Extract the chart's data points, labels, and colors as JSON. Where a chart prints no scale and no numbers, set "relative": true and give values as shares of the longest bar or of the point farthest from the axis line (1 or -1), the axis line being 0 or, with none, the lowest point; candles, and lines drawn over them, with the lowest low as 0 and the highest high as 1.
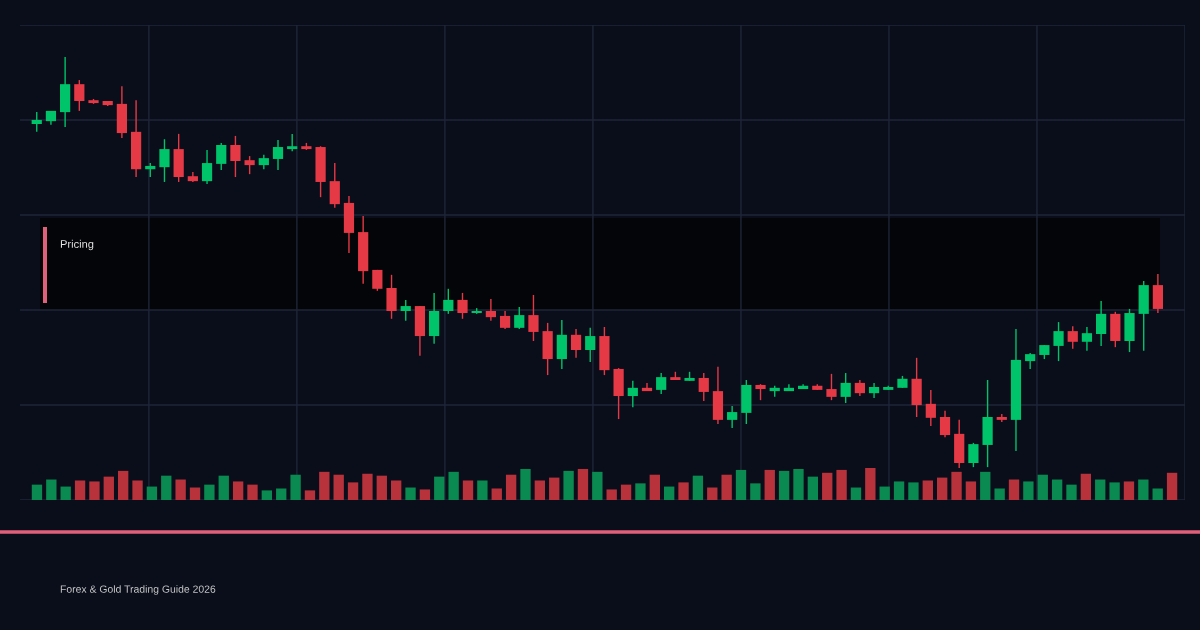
{
  "chart_data": [
    {
      "type": "candlestick",
      "relative": true,
      "grid": true,
      "categories": [
        null,
        null,
        null,
        null,
        null,
        null,
        null,
        null,
        null,
        null,
        null,
        null,
        null,
        null,
        null,
        null,
        null,
        null,
        null,
        null,
        null,
        null,
        null,
        null,
        null,
        null,
        null,
        null,
        null,
        null,
        null,
        null,
        null,
        null,
        null,
        null,
        null,
        null,
        null,
        null,
        null,
        null,
        null,
        null,
        null,
        null,
        null,
        null,
        null,
        null,
        null,
        null,
        null,
        null,
        null,
        null,
        null,
        null,
        null,
        null,
        null,
        null,
        null,
        null,
        null,
        null,
        null,
        null,
        null,
        null,
        null,
        null,
        null,
        null,
        null,
        null,
        null,
        null,
        null,
        null
      ],
      "annotations": [
        "Pricing",
        "Forex & Gold Trading Guide 2026"
      ],
      "ohlc": [
        [
          0.837,
          0.866,
          0.818,
          0.847
        ],
        [
          0.844,
          0.869,
          0.835,
          0.869
        ],
        [
          0.866,
          1,
          0.83,
          0.934
        ],
        [
          0.934,
          0.944,
          0.869,
          0.893
        ],
        [
          0.895,
          0.898,
          0.886,
          0.888
        ],
        [
          0.893,
          0.893,
          0.881,
          0.883
        ],
        [
          0.886,
          0.929,
          0.803,
          0.815
        ],
        [
          0.818,
          0.895,
          0.708,
          0.727
        ],
        [
          0.727,
          0.742,
          0.708,
          0.735
        ],
        [
          0.732,
          0.8,
          0.696,
          0.776
        ],
        [
          0.776,
          0.813,
          0.696,
          0.708
        ],
        [
          0.71,
          0.72,
          0.696,
          0.698
        ],
        [
          0.698,
          0.774,
          0.691,
          0.742
        ],
        [
          0.74,
          0.791,
          0.725,
          0.786
        ],
        [
          0.786,
          0.808,
          0.708,
          0.747
        ],
        [
          0.749,
          0.759,
          0.715,
          0.737
        ],
        [
          0.737,
          0.762,
          0.727,
          0.754
        ],
        [
          0.752,
          0.798,
          0.725,
          0.781
        ],
        [
          0.776,
          0.813,
          0.771,
          0.783
        ],
        [
          0.783,
          0.791,
          0.774,
          0.776
        ],
        [
          0.781,
          0.783,
          0.659,
          0.696
        ],
        [
          0.698,
          0.742,
          0.633,
          0.642
        ],
        [
          0.645,
          0.662,
          0.523,
          0.572
        ],
        [
          0.574,
          0.613,
          0.448,
          0.479
        ],
        [
          0.482,
          0.482,
          0.431,
          0.436
        ],
        [
          0.438,
          0.47,
          0.363,
          0.382
        ],
        [
          0.382,
          0.409,
          0.358,
          0.394
        ],
        [
          0.394,
          0.394,
          0.273,
          0.321
        ],
        [
          0.321,
          0.426,
          0.302,
          0.382
        ],
        [
          0.382,
          0.436,
          0.375,
          0.409
        ],
        [
          0.409,
          0.426,
          0.363,
          0.377
        ],
        [
          0.377,
          0.389,
          0.375,
          0.382
        ],
        [
          0.382,
          0.411,
          0.358,
          0.367
        ],
        [
          0.37,
          0.382,
          0.338,
          0.341
        ],
        [
          0.341,
          0.392,
          0.338,
          0.372
        ],
        [
          0.372,
          0.421,
          0.309,
          0.331
        ],
        [
          0.333,
          0.353,
          0.226,
          0.265
        ],
        [
          0.265,
          0.36,
          0.241,
          0.324
        ],
        [
          0.324,
          0.338,
          0.268,
          0.287
        ],
        [
          0.287,
          0.341,
          0.258,
          0.321
        ],
        [
          0.321,
          0.343,
          0.226,
          0.238
        ],
        [
          0.241,
          0.243,
          0.119,
          0.175
        ],
        [
          0.175,
          0.212,
          0.148,
          0.195
        ],
        [
          0.195,
          0.207,
          0.187,
          0.187
        ],
        [
          0.19,
          0.231,
          0.18,
          0.221
        ],
        [
          0.221,
          0.234,
          0.214,
          0.214
        ],
        [
          0.212,
          0.234,
          0.212,
          0.219
        ],
        [
          0.219,
          0.231,
          0.163,
          0.185
        ],
        [
          0.187,
          0.246,
          0.107,
          0.117
        ],
        [
          0.117,
          0.151,
          0.097,
          0.136
        ],
        [
          0.134,
          0.214,
          0.107,
          0.202
        ],
        [
          0.202,
          0.204,
          0.165,
          0.192
        ],
        [
          0.187,
          0.2,
          0.173,
          0.195
        ],
        [
          0.187,
          0.204,
          0.187,
          0.195
        ],
        [
          0.192,
          0.204,
          0.192,
          0.2
        ],
        [
          0.2,
          0.204,
          0.19,
          0.19
        ],
        [
          0.192,
          0.229,
          0.165,
          0.173
        ],
        [
          0.173,
          0.231,
          0.158,
          0.207
        ],
        [
          0.207,
          0.214,
          0.175,
          0.182
        ],
        [
          0.182,
          0.207,
          0.17,
          0.197
        ],
        [
          0.19,
          0.2,
          0.19,
          0.197
        ],
        [
          0.195,
          0.224,
          0.195,
          0.217
        ],
        [
          0.217,
          0.268,
          0.124,
          0.153
        ],
        [
          0.156,
          0.19,
          0.102,
          0.122
        ],
        [
          0.124,
          0.139,
          0.075,
          0.08
        ],
        [
          0.083,
          0.117,
          0,
          0.012
        ],
        [
          0.012,
          0.061,
          0.002,
          0.058
        ],
        [
          0.056,
          0.214,
          0.002,
          0.124
        ],
        [
          0.124,
          0.131,
          0.112,
          0.117
        ],
        [
          0.117,
          0.338,
          0.041,
          0.263
        ],
        [
          0.26,
          0.28,
          0.241,
          0.277
        ],
        [
          0.275,
          0.299,
          0.265,
          0.299
        ],
        [
          0.297,
          0.355,
          0.26,
          0.333
        ],
        [
          0.333,
          0.345,
          0.29,
          0.307
        ],
        [
          0.307,
          0.343,
          0.285,
          0.328
        ],
        [
          0.326,
          0.406,
          0.297,
          0.375
        ],
        [
          0.375,
          0.38,
          0.294,
          0.309
        ],
        [
          0.309,
          0.387,
          0.282,
          0.377
        ],
        [
          0.375,
          0.455,
          0.285,
          0.445
        ],
        [
          0.445,
          0.472,
          0.377,
          0.387
        ]
      ],
      "colors": [
        "#00c46a",
        "#00c46a",
        "#00c46a",
        "#e63946",
        "#e63946",
        "#e63946",
        "#e63946",
        "#e63946",
        "#00c46a",
        "#00c46a",
        "#e63946",
        "#e63946",
        "#00c46a",
        "#00c46a",
        "#e63946",
        "#e63946",
        "#00c46a",
        "#00c46a",
        "#00c46a",
        "#e63946",
        "#e63946",
        "#e63946",
        "#e63946",
        "#e63946",
        "#e63946",
        "#e63946",
        "#00c46a",
        "#e63946",
        "#00c46a",
        "#00c46a",
        "#e63946",
        "#00c46a",
        "#e63946",
        "#e63946",
        "#00c46a",
        "#e63946",
        "#e63946",
        "#00c46a",
        "#e63946",
        "#00c46a",
        "#e63946",
        "#e63946",
        "#00c46a",
        "#e63946",
        "#00c46a",
        "#e63946",
        "#00c46a",
        "#e63946",
        "#e63946",
        "#00c46a",
        "#00c46a",
        "#e63946",
        "#00c46a",
        "#00c46a",
        "#00c46a",
        "#e63946",
        "#e63946",
        "#00c46a",
        "#e63946",
        "#00c46a",
        "#00c46a",
        "#00c46a",
        "#e63946",
        "#e63946",
        "#e63946",
        "#e63946",
        "#00c46a",
        "#00c46a",
        "#e63946",
        "#00c46a",
        "#00c46a",
        "#00c46a",
        "#00c46a",
        "#e63946",
        "#00c46a",
        "#00c46a",
        "#e63946",
        "#00c46a",
        "#00c46a",
        "#e63946"
      ]
    },
    {
      "type": "bar",
      "relative": true,
      "categories": [
        null,
        null,
        null,
        null,
        null,
        null,
        null,
        null,
        null,
        null,
        null,
        null,
        null,
        null,
        null,
        null,
        null,
        null,
        null,
        null,
        null,
        null,
        null,
        null,
        null,
        null,
        null,
        null,
        null,
        null,
        null,
        null,
        null,
        null,
        null,
        null,
        null,
        null,
        null,
        null,
        null,
        null,
        null,
        null,
        null,
        null,
        null,
        null,
        null,
        null,
        null,
        null,
        null,
        null,
        null,
        null,
        null,
        null,
        null,
        null,
        null,
        null,
        null,
        null,
        null,
        null,
        null,
        null,
        null,
        null,
        null,
        null,
        null,
        null,
        null,
        null,
        null,
        null,
        null,
        null
      ],
      "values": [
        0.48,
        0.64,
        0.42,
        0.61,
        0.58,
        0.73,
        0.91,
        0.61,
        0.42,
        0.76,
        0.64,
        0.39,
        0.48,
        0.76,
        0.58,
        0.48,
        0.3,
        0.36,
        0.79,
        0.3,
        0.88,
        0.79,
        0.55,
        0.82,
        0.76,
        0.61,
        0.39,
        0.33,
        0.73,
        0.88,
        0.61,
        0.61,
        0.36,
        0.79,
        0.97,
        0.61,
        0.7,
        0.91,
        0.97,
        0.88,
        0.33,
        0.48,
        0.52,
        0.79,
        0.42,
        0.55,
        0.76,
        0.39,
        0.79,
        0.94,
        0.52,
        0.94,
        0.91,
        0.97,
        0.73,
        0.85,
        0.94,
        0.39,
        1,
        0.42,
        0.58,
        0.55,
        0.61,
        0.7,
        0.88,
        0.58,
        0.88,
        0.36,
        0.64,
        0.58,
        0.79,
        0.64,
        0.48,
        0.82,
        0.64,
        0.55,
        0.58,
        0.64,
        0.36,
        0.85
      ],
      "colors": [
        "#0a8a50",
        "#0a8a50",
        "#0a8a50",
        "#b8323c",
        "#b8323c",
        "#b8323c",
        "#b8323c",
        "#b8323c",
        "#0a8a50",
        "#0a8a50",
        "#b8323c",
        "#b8323c",
        "#0a8a50",
        "#0a8a50",
        "#b8323c",
        "#b8323c",
        "#0a8a50",
        "#0a8a50",
        "#0a8a50",
        "#b8323c",
        "#b8323c",
        "#b8323c",
        "#b8323c",
        "#b8323c",
        "#b8323c",
        "#b8323c",
        "#0a8a50",
        "#b8323c",
        "#0a8a50",
        "#0a8a50",
        "#b8323c",
        "#0a8a50",
        "#b8323c",
        "#b8323c",
        "#0a8a50",
        "#b8323c",
        "#b8323c",
        "#0a8a50",
        "#b8323c",
        "#0a8a50",
        "#b8323c",
        "#b8323c",
        "#0a8a50",
        "#b8323c",
        "#0a8a50",
        "#b8323c",
        "#0a8a50",
        "#b8323c",
        "#b8323c",
        "#0a8a50",
        "#0a8a50",
        "#b8323c",
        "#0a8a50",
        "#0a8a50",
        "#0a8a50",
        "#b8323c",
        "#b8323c",
        "#0a8a50",
        "#b8323c",
        "#0a8a50",
        "#0a8a50",
        "#0a8a50",
        "#b8323c",
        "#b8323c",
        "#b8323c",
        "#b8323c",
        "#0a8a50",
        "#0a8a50",
        "#b8323c",
        "#0a8a50",
        "#0a8a50",
        "#0a8a50",
        "#0a8a50",
        "#b8323c",
        "#0a8a50",
        "#0a8a50",
        "#b8323c",
        "#0a8a50",
        "#0a8a50",
        "#b8323c"
      ]
    }
  ]
}
